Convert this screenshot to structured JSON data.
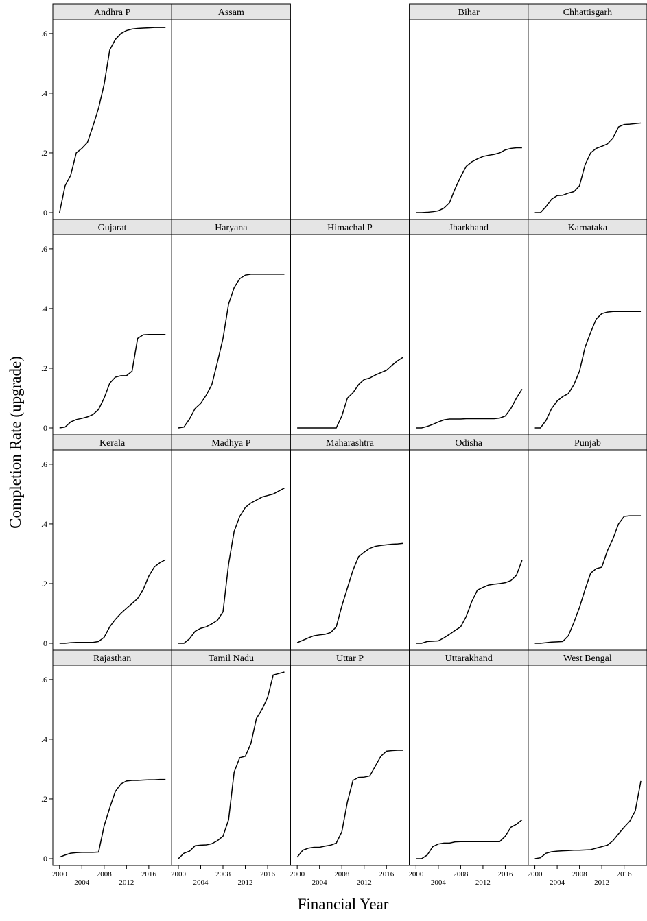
{
  "chart_data": {
    "type": "line",
    "y_label": "Completion Rate (upgrade)",
    "x_label": "Financial Year",
    "color": "#000000",
    "x": [
      2000,
      2001,
      2002,
      2003,
      2004,
      2005,
      2006,
      2007,
      2008,
      2009,
      2010,
      2011,
      2012,
      2013,
      2014,
      2015,
      2016,
      2017,
      2018,
      2019
    ],
    "xlim": [
      1998.8,
      2020.1
    ],
    "xticks": [
      2000,
      2004,
      2008,
      2012,
      2016
    ],
    "ylim": [
      -0.023,
      0.648
    ],
    "yticks": [
      0,
      {
        "value": 0.2,
        "label": ".2"
      },
      {
        "value": 0.4,
        "label": ".4"
      },
      {
        "value": 0.6,
        "label": ".6"
      }
    ],
    "series": [
      {
        "name": "Andhra P",
        "values": [
          0,
          0.09,
          0.125,
          0.2,
          0.215,
          0.235,
          0.29,
          0.35,
          0.43,
          0.545,
          0.58,
          0.6,
          0.61,
          0.615,
          0.617,
          0.618,
          0.619,
          0.62,
          0.62,
          0.62
        ]
      },
      {
        "name": "Assam",
        "values": [
          null,
          null,
          null,
          null,
          null,
          null,
          null,
          null,
          null,
          null,
          null,
          null,
          null,
          null,
          null,
          null,
          null,
          null,
          null,
          null
        ]
      },
      {
        "name": "Bihar",
        "values": [
          0,
          0,
          0.001,
          0.003,
          0.006,
          0.015,
          0.033,
          0.08,
          0.12,
          0.155,
          0.17,
          0.18,
          0.188,
          0.192,
          0.195,
          0.2,
          0.21,
          0.215,
          0.217,
          0.217
        ]
      },
      {
        "name": "Chhattisgarh",
        "values": [
          0,
          0,
          0.02,
          0.045,
          0.057,
          0.058,
          0.065,
          0.07,
          0.09,
          0.16,
          0.2,
          0.215,
          0.222,
          0.23,
          0.25,
          0.287,
          0.295,
          0.296,
          0.298,
          0.3
        ]
      },
      {
        "name": "Gujarat",
        "values": [
          0,
          0.003,
          0.02,
          0.028,
          0.032,
          0.037,
          0.045,
          0.062,
          0.1,
          0.15,
          0.17,
          0.175,
          0.175,
          0.19,
          0.3,
          0.312,
          0.313,
          0.313,
          0.313,
          0.313
        ]
      },
      {
        "name": "Haryana",
        "values": [
          0,
          0.003,
          0.03,
          0.065,
          0.082,
          0.11,
          0.145,
          0.22,
          0.3,
          0.415,
          0.47,
          0.5,
          0.512,
          0.515,
          0.515,
          0.515,
          0.515,
          0.515,
          0.515,
          0.515
        ]
      },
      {
        "name": "Himachal P",
        "values": [
          0,
          0,
          0,
          0,
          0,
          0,
          0,
          0,
          0.04,
          0.1,
          0.118,
          0.145,
          0.162,
          0.167,
          0.177,
          0.185,
          0.193,
          0.21,
          0.225,
          0.237
        ]
      },
      {
        "name": "Jharkhand",
        "values": [
          0,
          0,
          0.005,
          0.012,
          0.02,
          0.027,
          0.03,
          0.03,
          0.03,
          0.031,
          0.031,
          0.031,
          0.031,
          0.031,
          0.031,
          0.033,
          0.04,
          0.065,
          0.1,
          0.13
        ]
      },
      {
        "name": "Karnataka",
        "values": [
          0,
          0,
          0.025,
          0.065,
          0.09,
          0.105,
          0.115,
          0.145,
          0.19,
          0.27,
          0.32,
          0.365,
          0.383,
          0.388,
          0.39,
          0.39,
          0.39,
          0.39,
          0.39,
          0.39
        ]
      },
      {
        "name": "Kerala",
        "values": [
          0,
          0,
          0.002,
          0.003,
          0.003,
          0.003,
          0.003,
          0.006,
          0.02,
          0.055,
          0.08,
          0.1,
          0.117,
          0.133,
          0.15,
          0.18,
          0.225,
          0.256,
          0.27,
          0.28
        ]
      },
      {
        "name": "Madhya P",
        "values": [
          0,
          0,
          0.015,
          0.04,
          0.05,
          0.055,
          0.065,
          0.077,
          0.105,
          0.265,
          0.375,
          0.425,
          0.455,
          0.47,
          0.48,
          0.49,
          0.495,
          0.5,
          0.51,
          0.52
        ]
      },
      {
        "name": "Maharashtra",
        "values": [
          0.002,
          0.01,
          0.018,
          0.025,
          0.028,
          0.03,
          0.036,
          0.055,
          0.125,
          0.185,
          0.245,
          0.29,
          0.305,
          0.318,
          0.325,
          0.328,
          0.33,
          0.332,
          0.333,
          0.335
        ]
      },
      {
        "name": "Odisha",
        "values": [
          0,
          0,
          0.006,
          0.007,
          0.008,
          0.018,
          0.03,
          0.043,
          0.055,
          0.09,
          0.14,
          0.178,
          0.187,
          0.195,
          0.198,
          0.2,
          0.203,
          0.21,
          0.228,
          0.278
        ]
      },
      {
        "name": "Punjab",
        "values": [
          0,
          0,
          0.002,
          0.004,
          0.005,
          0.006,
          0.025,
          0.07,
          0.12,
          0.18,
          0.235,
          0.25,
          0.255,
          0.31,
          0.35,
          0.4,
          0.425,
          0.427,
          0.427,
          0.427
        ]
      },
      {
        "name": "Rajasthan",
        "values": [
          0.005,
          0.012,
          0.018,
          0.02,
          0.021,
          0.021,
          0.021,
          0.022,
          0.11,
          0.17,
          0.225,
          0.25,
          0.26,
          0.262,
          0.262,
          0.263,
          0.264,
          0.264,
          0.265,
          0.265
        ]
      },
      {
        "name": "Tamil Nadu",
        "values": [
          0,
          0.018,
          0.025,
          0.043,
          0.045,
          0.046,
          0.05,
          0.06,
          0.075,
          0.13,
          0.29,
          0.338,
          0.343,
          0.385,
          0.47,
          0.5,
          0.54,
          0.615,
          0.62,
          0.625
        ]
      },
      {
        "name": "Uttar P",
        "values": [
          0.005,
          0.028,
          0.035,
          0.038,
          0.038,
          0.042,
          0.045,
          0.052,
          0.09,
          0.19,
          0.262,
          0.272,
          0.273,
          0.277,
          0.31,
          0.343,
          0.36,
          0.362,
          0.363,
          0.363
        ]
      },
      {
        "name": "Uttarakhand",
        "values": [
          0,
          0,
          0.012,
          0.04,
          0.049,
          0.052,
          0.052,
          0.056,
          0.057,
          0.057,
          0.057,
          0.057,
          0.057,
          0.057,
          0.057,
          0.057,
          0.075,
          0.105,
          0.115,
          0.13
        ]
      },
      {
        "name": "West Bengal",
        "values": [
          0,
          0.003,
          0.018,
          0.023,
          0.025,
          0.026,
          0.027,
          0.028,
          0.028,
          0.029,
          0.03,
          0.035,
          0.04,
          0.045,
          0.06,
          0.083,
          0.105,
          0.125,
          0.16,
          0.26
        ]
      }
    ]
  }
}
